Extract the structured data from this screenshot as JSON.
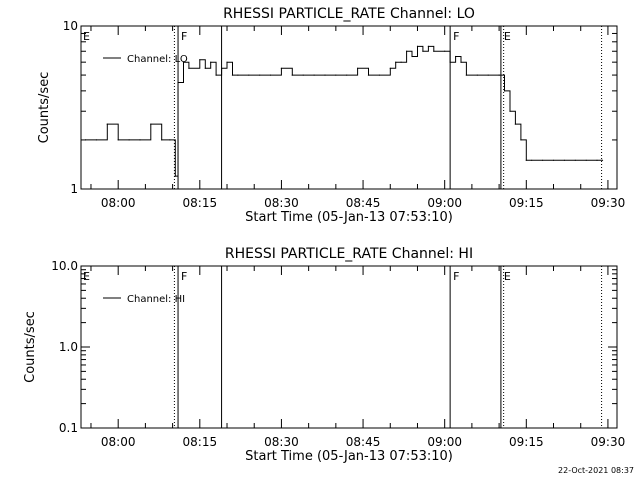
{
  "footer": {
    "timestamp": "22-Oct-2021 08:37"
  },
  "chart_data": [
    {
      "type": "line",
      "title": "RHESSI PARTICLE_RATE Channel: LO",
      "xlabel": "Start Time (05-Jan-13 07:53:10)",
      "ylabel": "Counts/sec",
      "yscale": "log",
      "ylim": [
        1,
        10
      ],
      "y_tick_labels": [
        "1",
        "10"
      ],
      "xlim": [
        "07:53:10",
        "09:31:40"
      ],
      "x_tick_labels": [
        "08:00",
        "08:15",
        "08:30",
        "08:45",
        "09:00",
        "09:15",
        "09:30"
      ],
      "grid": false,
      "legend": {
        "position": "top-left",
        "entries": [
          {
            "label": "Channel: LO"
          }
        ]
      },
      "markers": [
        {
          "time": "08:10:20",
          "style": "dotted",
          "label": ""
        },
        {
          "time": "08:11:00",
          "style": "solid",
          "label": "F"
        },
        {
          "time": "08:19:00",
          "style": "solid",
          "label": ""
        },
        {
          "time": "09:01:00",
          "style": "solid",
          "label": "F"
        },
        {
          "time": "09:10:20",
          "style": "solid",
          "label": "E"
        },
        {
          "time": "09:10:50",
          "style": "dotted",
          "label": ""
        },
        {
          "time": "09:28:50",
          "style": "dotted",
          "label": ""
        }
      ],
      "corner_flags": [
        {
          "position": "left",
          "label": "E"
        }
      ],
      "series": [
        {
          "x": [
            "07:54:00",
            "07:56:00",
            "07:58:00",
            "08:00:00",
            "08:02:00",
            "08:04:00",
            "08:06:00",
            "08:08:00",
            "08:09:30",
            "08:10:30",
            "08:11:00",
            "08:12:00",
            "08:13:00",
            "08:15:00",
            "08:16:00",
            "08:17:00",
            "08:18:00",
            "08:19:00",
            "08:20:00",
            "08:21:00",
            "08:22:00",
            "08:24:00",
            "08:26:00",
            "08:28:00",
            "08:30:00",
            "08:32:00",
            "08:34:00",
            "08:36:00",
            "08:38:00",
            "08:40:00",
            "08:42:00",
            "08:44:00",
            "08:46:00",
            "08:48:00",
            "08:50:00",
            "08:51:00",
            "08:52:00",
            "08:53:00",
            "08:54:00",
            "08:55:00",
            "08:56:00",
            "08:57:00",
            "08:58:00",
            "09:00:00",
            "09:01:00",
            "09:02:00",
            "09:03:00",
            "09:04:00",
            "09:06:00",
            "09:08:00",
            "09:10:00",
            "09:11:00",
            "09:12:00",
            "09:13:00",
            "09:14:00",
            "09:15:00",
            "09:16:00",
            "09:18:00",
            "09:20:00",
            "09:22:00",
            "09:24:00",
            "09:26:00",
            "09:28:00",
            "09:29:00"
          ],
          "values": [
            2,
            2,
            2.5,
            2,
            2,
            2,
            2.5,
            2,
            2,
            1.2,
            4.5,
            6,
            5.5,
            6.2,
            5.5,
            6,
            5,
            5.5,
            6,
            5,
            5,
            5,
            5,
            5,
            5.5,
            5,
            5,
            5,
            5,
            5,
            5,
            5.5,
            5,
            5,
            5.5,
            6,
            6,
            7,
            6.5,
            7.5,
            7,
            7.5,
            7,
            7,
            6,
            6.5,
            6,
            5,
            5,
            5,
            5,
            4,
            3,
            2.5,
            2,
            1.5,
            1.5,
            1.5,
            1.5,
            1.5,
            1.5,
            1.5,
            1.5,
            1.5
          ]
        }
      ]
    },
    {
      "type": "line",
      "title": "RHESSI PARTICLE_RATE Channel: HI",
      "xlabel": "Start Time (05-Jan-13 07:53:10)",
      "ylabel": "Counts/sec",
      "yscale": "log",
      "ylim": [
        0.1,
        10
      ],
      "y_tick_labels": [
        "0.1",
        "1.0",
        "10.0"
      ],
      "xlim": [
        "07:53:10",
        "09:31:40"
      ],
      "x_tick_labels": [
        "08:00",
        "08:15",
        "08:30",
        "08:45",
        "09:00",
        "09:15",
        "09:30"
      ],
      "grid": false,
      "legend": {
        "position": "top-left",
        "entries": [
          {
            "label": "Channel: HI"
          }
        ]
      },
      "markers": [
        {
          "time": "08:10:20",
          "style": "dotted",
          "label": ""
        },
        {
          "time": "08:11:00",
          "style": "solid",
          "label": "F"
        },
        {
          "time": "08:19:00",
          "style": "solid",
          "label": ""
        },
        {
          "time": "09:01:00",
          "style": "solid",
          "label": "F"
        },
        {
          "time": "09:10:20",
          "style": "solid",
          "label": "E"
        },
        {
          "time": "09:10:50",
          "style": "dotted",
          "label": ""
        },
        {
          "time": "09:28:50",
          "style": "dotted",
          "label": ""
        }
      ],
      "corner_flags": [
        {
          "position": "left",
          "label": "E"
        }
      ],
      "series": []
    }
  ]
}
